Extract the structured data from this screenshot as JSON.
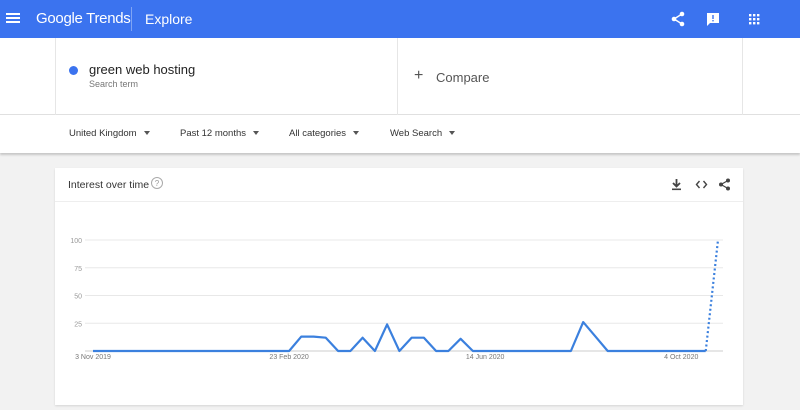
{
  "header": {
    "logo": "Google Trends",
    "page": "Explore",
    "icons": [
      "menu-icon",
      "share-icon",
      "feedback-icon",
      "apps-icon"
    ],
    "color": "#3b73ef"
  },
  "search": {
    "term": "green web hosting",
    "term_sub": "Search term",
    "term_color": "#3b73ef",
    "compare_label": "Compare"
  },
  "filters": [
    {
      "label": "United Kingdom"
    },
    {
      "label": "Past 12 months"
    },
    {
      "label": "All categories"
    },
    {
      "label": "Web Search"
    }
  ],
  "card": {
    "title": "Interest over time",
    "help": "?",
    "icons": [
      "download-icon",
      "embed-icon",
      "share-icon"
    ]
  },
  "chart_data": {
    "type": "line",
    "ylim": [
      0,
      100
    ],
    "yticks": [
      "100",
      "75",
      "50",
      "25"
    ],
    "xtick_labels": [
      "3 Nov 2019",
      "23 Feb 2020",
      "14 Jun 2020",
      "4 Oct 2020"
    ],
    "xtick_index": [
      0,
      16,
      32,
      48
    ],
    "grid": true,
    "color": "#3b80de",
    "partial_last_point": true,
    "values": [
      0,
      0,
      0,
      0,
      0,
      0,
      0,
      0,
      0,
      0,
      0,
      0,
      0,
      0,
      0,
      0,
      0,
      13,
      13,
      12,
      0,
      0,
      12,
      0,
      24,
      0,
      12,
      12,
      0,
      0,
      11,
      0,
      0,
      0,
      0,
      0,
      0,
      0,
      0,
      0,
      26,
      13,
      0,
      0,
      0,
      0,
      0,
      0,
      0,
      0,
      0,
      100
    ]
  }
}
